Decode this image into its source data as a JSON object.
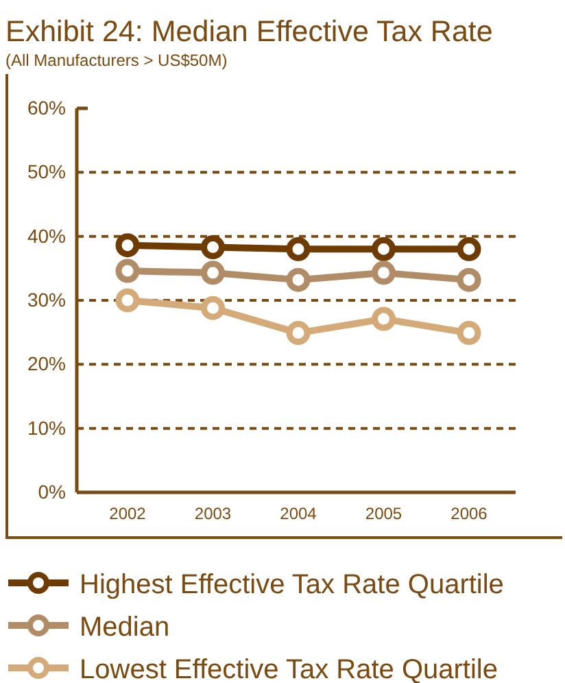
{
  "chart_data": {
    "type": "line",
    "title": "Exhibit 24: Median Effective Tax Rate",
    "subtitle": "(All Manufacturers > US$50M)",
    "categories": [
      "2002",
      "2003",
      "2004",
      "2005",
      "2006"
    ],
    "series": [
      {
        "name": "Highest Effective Tax Rate Quartile",
        "color": "#6e3b02",
        "values": [
          38.6,
          38.3,
          38.0,
          38.0,
          38.0
        ]
      },
      {
        "name": "Median",
        "color": "#b08d66",
        "values": [
          34.6,
          34.3,
          33.2,
          34.3,
          33.2
        ]
      },
      {
        "name": "Lowest Effective Tax Rate Quartile",
        "color": "#d4aa78",
        "values": [
          30.0,
          28.8,
          24.9,
          27.1,
          24.9
        ]
      }
    ],
    "ylim": [
      0,
      60
    ],
    "yticks": [
      {
        "value": 0,
        "label": "0%"
      },
      {
        "value": 10,
        "label": "10%"
      },
      {
        "value": 20,
        "label": "20%"
      },
      {
        "value": 30,
        "label": "30%"
      },
      {
        "value": 40,
        "label": "40%"
      },
      {
        "value": 50,
        "label": "50%"
      },
      {
        "value": 60,
        "label": "60%"
      }
    ],
    "grid": "y",
    "legend": "bottom",
    "marker": "circle",
    "line_style": "solid"
  }
}
